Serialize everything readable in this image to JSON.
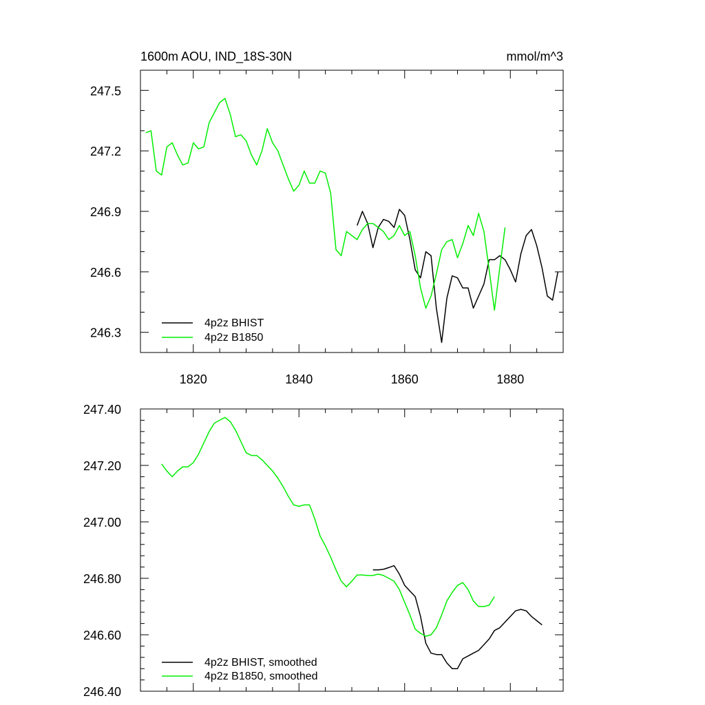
{
  "chart_data": [
    {
      "type": "line",
      "title": "1600m AOU, IND_18S-30N",
      "units": "mmol/m^3",
      "xlim": [
        1810,
        1890
      ],
      "ylim": [
        246.2,
        247.6
      ],
      "x_ticks": [
        1820,
        1840,
        1860,
        1880
      ],
      "x_tick_labels": [
        "1820",
        "1840",
        "1860",
        "1880"
      ],
      "y_ticks": [
        246.3,
        246.6,
        246.9,
        247.2,
        247.5
      ],
      "y_tick_labels": [
        "246.3",
        "246.6",
        "246.9",
        "247.2",
        "247.5"
      ],
      "legend_position": "bottom-left",
      "series": [
        {
          "name": "4p2z BHIST",
          "color": "#000000",
          "x": [
            1851,
            1852,
            1853,
            1854,
            1855,
            1856,
            1857,
            1858,
            1859,
            1860,
            1861,
            1862,
            1863,
            1864,
            1865,
            1866,
            1867,
            1868,
            1869,
            1870,
            1871,
            1872,
            1873,
            1874,
            1875,
            1876,
            1877,
            1878,
            1879,
            1880,
            1881,
            1882,
            1883,
            1884,
            1885,
            1886,
            1887,
            1888,
            1889
          ],
          "y": [
            246.83,
            246.9,
            246.84,
            246.72,
            246.82,
            246.86,
            246.85,
            246.82,
            246.91,
            246.88,
            246.76,
            246.61,
            246.57,
            246.7,
            246.68,
            246.42,
            246.25,
            246.47,
            246.58,
            246.57,
            246.52,
            246.52,
            246.42,
            246.48,
            246.54,
            246.66,
            246.66,
            246.68,
            246.66,
            246.61,
            246.55,
            246.69,
            246.78,
            246.81,
            246.73,
            246.62,
            246.48,
            246.46,
            246.6
          ]
        },
        {
          "name": "4p2z B1850",
          "color": "#00ee00",
          "x": [
            1811,
            1812,
            1813,
            1814,
            1815,
            1816,
            1817,
            1818,
            1819,
            1820,
            1821,
            1822,
            1823,
            1824,
            1825,
            1826,
            1827,
            1828,
            1829,
            1830,
            1831,
            1832,
            1833,
            1834,
            1835,
            1836,
            1837,
            1838,
            1839,
            1840,
            1841,
            1842,
            1843,
            1844,
            1845,
            1846,
            1847,
            1848,
            1849,
            1850,
            1851,
            1852,
            1853,
            1854,
            1855,
            1856,
            1857,
            1858,
            1859,
            1860,
            1861,
            1862,
            1863,
            1864,
            1865,
            1866,
            1867,
            1868,
            1869,
            1870,
            1871,
            1872,
            1873,
            1874,
            1875,
            1876,
            1877,
            1878,
            1879
          ],
          "y": [
            247.29,
            247.3,
            247.1,
            247.08,
            247.22,
            247.24,
            247.18,
            247.13,
            247.14,
            247.24,
            247.21,
            247.22,
            247.34,
            247.39,
            247.44,
            247.46,
            247.38,
            247.27,
            247.28,
            247.25,
            247.18,
            247.13,
            247.2,
            247.31,
            247.24,
            247.2,
            247.13,
            247.06,
            247.0,
            247.03,
            247.1,
            247.04,
            247.04,
            247.1,
            247.09,
            246.99,
            246.71,
            246.68,
            246.8,
            246.78,
            246.76,
            246.81,
            246.84,
            246.84,
            246.82,
            246.8,
            246.76,
            246.78,
            246.83,
            246.78,
            246.8,
            246.68,
            246.52,
            246.42,
            246.48,
            246.59,
            246.71,
            246.75,
            246.76,
            246.67,
            246.74,
            246.83,
            246.78,
            246.89,
            246.8,
            246.61,
            246.41,
            246.62,
            246.82
          ]
        }
      ]
    },
    {
      "type": "line",
      "title": "",
      "xlim": [
        1810,
        1890
      ],
      "ylim": [
        246.4,
        247.4
      ],
      "x_ticks": [
        1820,
        1840,
        1860,
        1880
      ],
      "y_ticks": [
        246.4,
        246.6,
        246.8,
        247.0,
        247.2,
        247.4
      ],
      "y_tick_labels": [
        "246.40",
        "246.60",
        "246.80",
        "247.00",
        "247.20",
        "247.40"
      ],
      "legend_position": "bottom-left",
      "series": [
        {
          "name": "4p2z BHIST, smoothed",
          "color": "#000000",
          "x": [
            1854,
            1855,
            1856,
            1857,
            1858,
            1859,
            1860,
            1861,
            1862,
            1863,
            1864,
            1865,
            1866,
            1867,
            1868,
            1869,
            1870,
            1871,
            1872,
            1873,
            1874,
            1875,
            1876,
            1877,
            1878,
            1879,
            1880,
            1881,
            1882,
            1883,
            1884,
            1885,
            1886
          ],
          "y": [
            246.83,
            246.83,
            246.832,
            246.838,
            246.845,
            246.815,
            246.775,
            246.755,
            246.735,
            246.665,
            246.57,
            246.535,
            246.53,
            246.53,
            246.5,
            246.48,
            246.48,
            246.515,
            246.525,
            246.535,
            246.545,
            246.565,
            246.585,
            246.615,
            246.625,
            246.645,
            246.665,
            246.685,
            246.69,
            246.685,
            246.665,
            246.65,
            246.635
          ]
        },
        {
          "name": "4p2z B1850, smoothed",
          "color": "#00ee00",
          "x": [
            1814,
            1815,
            1816,
            1817,
            1818,
            1819,
            1820,
            1821,
            1822,
            1823,
            1824,
            1825,
            1826,
            1827,
            1828,
            1829,
            1830,
            1831,
            1832,
            1833,
            1834,
            1835,
            1836,
            1837,
            1838,
            1839,
            1840,
            1841,
            1842,
            1843,
            1844,
            1845,
            1846,
            1847,
            1848,
            1849,
            1850,
            1851,
            1852,
            1853,
            1854,
            1855,
            1856,
            1857,
            1858,
            1859,
            1860,
            1861,
            1862,
            1863,
            1864,
            1865,
            1866,
            1867,
            1868,
            1869,
            1870,
            1871,
            1872,
            1873,
            1874,
            1875,
            1876,
            1877
          ],
          "y": [
            247.205,
            247.18,
            247.16,
            247.18,
            247.195,
            247.195,
            247.21,
            247.24,
            247.28,
            247.32,
            247.35,
            247.36,
            247.37,
            247.355,
            247.325,
            247.285,
            247.245,
            247.235,
            247.235,
            247.22,
            247.2,
            247.18,
            247.155,
            247.125,
            247.09,
            247.06,
            247.055,
            247.06,
            247.06,
            247.01,
            246.95,
            246.915,
            246.875,
            246.83,
            246.79,
            246.77,
            246.79,
            246.812,
            246.812,
            246.81,
            246.81,
            246.815,
            246.81,
            246.8,
            246.79,
            246.76,
            246.715,
            246.67,
            246.62,
            246.605,
            246.595,
            246.6,
            246.625,
            246.67,
            246.72,
            246.75,
            246.775,
            246.785,
            246.76,
            246.72,
            246.7,
            246.7,
            246.705,
            246.735
          ]
        }
      ]
    }
  ]
}
